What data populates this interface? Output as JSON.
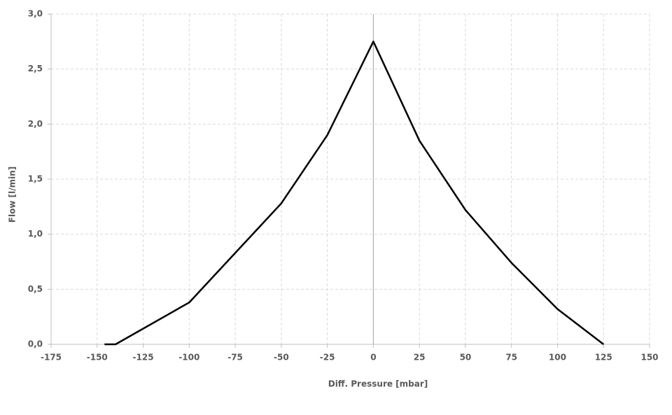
{
  "chart_data": {
    "type": "line",
    "x_label": "Diff. Pressure [mbar]",
    "y_label": "Flow [l/min]",
    "series": [
      {
        "color": "#000000",
        "x": [
          -146,
          -140,
          -100,
          -50,
          -25,
          0,
          25,
          50,
          75,
          100,
          125
        ],
        "values": [
          0,
          0,
          0.38,
          1.28,
          1.9,
          2.75,
          1.85,
          1.22,
          0.74,
          0.32,
          0
        ]
      }
    ],
    "xlim": [
      -175,
      150
    ],
    "xticks": [
      -175,
      -150,
      -125,
      -100,
      -75,
      -50,
      -25,
      0,
      25,
      50,
      75,
      100,
      125,
      150
    ],
    "ylim": [
      0,
      3
    ],
    "yticks": [
      {
        "value": 0,
        "label": "0,0"
      },
      {
        "value": 0.5,
        "label": "0,5"
      },
      {
        "value": 1,
        "label": "1,0"
      },
      {
        "value": 1.5,
        "label": "1,5"
      },
      {
        "value": 2,
        "label": "2,0"
      },
      {
        "value": 2.5,
        "label": "2,5"
      },
      {
        "value": 3,
        "label": "3,0"
      }
    ],
    "grid": true
  }
}
